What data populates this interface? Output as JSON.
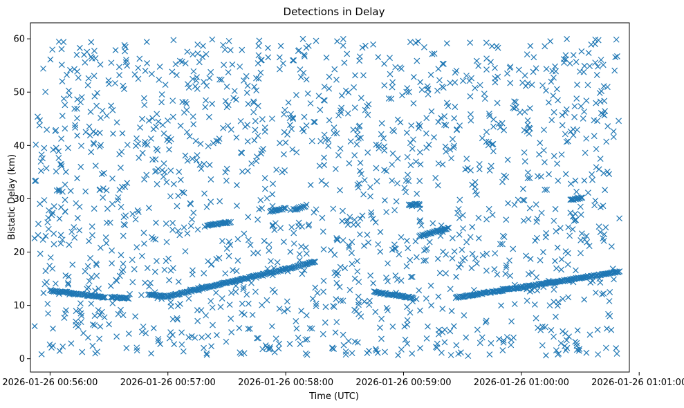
{
  "chart_data": {
    "type": "scatter",
    "title": "Detections in Delay",
    "xlabel": "Time (UTC)",
    "ylabel": "Bistatic Delay (km)",
    "marker": "x",
    "color": "#1f77b4",
    "grid": false,
    "legend": "none",
    "xlim": [
      "2026-01-26 00:55:50",
      "2026-01-26 01:00:55"
    ],
    "ylim": [
      -2.5,
      63
    ],
    "x_tick_labels": [
      "2026-01-26 00:56:00",
      "2026-01-26 00:57:00",
      "2026-01-26 00:58:00",
      "2026-01-26 00:59:00",
      "2026-01-26 01:00:00",
      "2026-01-26 01:01:00"
    ],
    "y_ticks": [
      0,
      10,
      20,
      30,
      40,
      50,
      60
    ],
    "y_tick_labels": [
      "0",
      "10",
      "20",
      "30",
      "40",
      "50",
      "60"
    ],
    "detection_time_range": [
      "2026-01-26 00:55:52",
      "2026-01-26 01:00:50"
    ],
    "noise_delay_range": [
      0.5,
      60
    ],
    "noise_detection_count_approx": 1550,
    "track_segments": [
      {
        "start": "2026-01-26 00:56:00",
        "end": "2026-01-26 00:56:28",
        "delay_start": 12.8,
        "delay_end": 11.5
      },
      {
        "start": "2026-01-26 00:56:31",
        "end": "2026-01-26 00:56:40",
        "delay_start": 11.6,
        "delay_end": 11.3
      },
      {
        "start": "2026-01-26 00:56:50",
        "end": "2026-01-26 00:57:00",
        "delay_start": 12.0,
        "delay_end": 11.7
      },
      {
        "start": "2026-01-26 00:57:00",
        "end": "2026-01-26 00:58:00",
        "delay_start": 11.7,
        "delay_end": 16.8
      },
      {
        "start": "2026-01-26 00:58:00",
        "end": "2026-01-26 00:58:15",
        "delay_start": 16.8,
        "delay_end": 18.2
      },
      {
        "start": "2026-01-26 00:58:45",
        "end": "2026-01-26 00:59:05",
        "delay_start": 12.5,
        "delay_end": 11.4
      },
      {
        "start": "2026-01-26 00:59:27",
        "end": "2026-01-26 01:00:50",
        "delay_start": 11.5,
        "delay_end": 16.3
      },
      {
        "start": "2026-01-26 00:57:20",
        "end": "2026-01-26 00:57:32",
        "delay_start": 25.0,
        "delay_end": 25.6
      },
      {
        "start": "2026-01-26 00:57:52",
        "end": "2026-01-26 00:58:00",
        "delay_start": 27.6,
        "delay_end": 28.2
      },
      {
        "start": "2026-01-26 00:58:04",
        "end": "2026-01-26 00:58:10",
        "delay_start": 28.0,
        "delay_end": 28.6
      },
      {
        "start": "2026-01-26 00:59:08",
        "end": "2026-01-26 00:59:23",
        "delay_start": 23.0,
        "delay_end": 24.5
      },
      {
        "start": "2026-01-26 00:59:03",
        "end": "2026-01-26 00:59:08",
        "delay_start": 28.8,
        "delay_end": 29.0
      },
      {
        "start": "2026-01-26 01:00:25",
        "end": "2026-01-26 01:00:31",
        "delay_start": 29.8,
        "delay_end": 30.2
      }
    ]
  }
}
